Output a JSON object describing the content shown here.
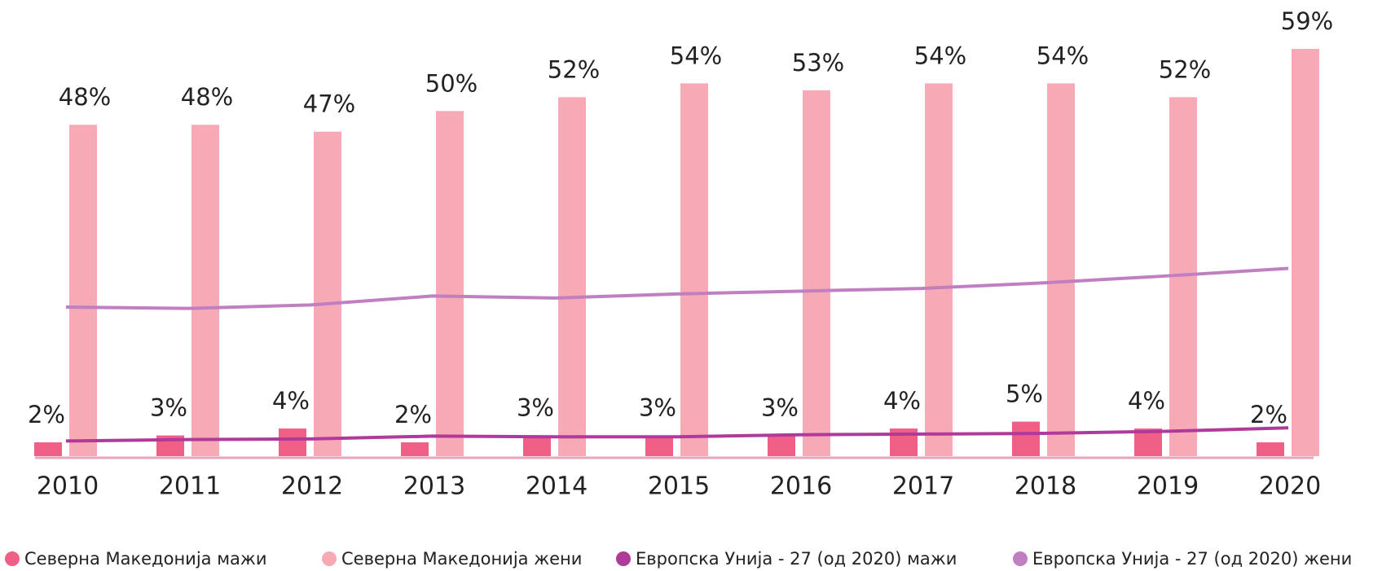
{
  "chart_data": {
    "type": "bar",
    "categories": [
      "2010",
      "2011",
      "2012",
      "2013",
      "2014",
      "2015",
      "2016",
      "2017",
      "2018",
      "2019",
      "2020"
    ],
    "series": [
      {
        "name": "Северна Македонија мажи",
        "type": "bar",
        "color": "#ef5f86",
        "values": [
          2,
          3,
          4,
          2,
          3,
          3,
          3,
          4,
          5,
          4,
          2
        ],
        "value_labels": [
          "2%",
          "3%",
          "4%",
          "2%",
          "3%",
          "3%",
          "3%",
          "4%",
          "5%",
          "4%",
          "2%"
        ]
      },
      {
        "name": "Северна Македонија жени",
        "type": "bar",
        "color": "#f7aab5",
        "values": [
          48,
          48,
          47,
          50,
          52,
          54,
          53,
          54,
          54,
          52,
          59
        ],
        "value_labels": [
          "48%",
          "48%",
          "47%",
          "50%",
          "52%",
          "54%",
          "53%",
          "54%",
          "54%",
          "52%",
          "59%"
        ]
      },
      {
        "name": "Европска Унија - 27 (од 2020) мажи",
        "type": "line",
        "color": "#b03a9a",
        "values": [
          2.2,
          2.4,
          2.5,
          2.9,
          2.8,
          2.8,
          3.1,
          3.2,
          3.3,
          3.6,
          4.1
        ]
      },
      {
        "name": "Европска Унија - 27 (од 2020) жени",
        "type": "line",
        "color": "#c07fc0",
        "values": [
          21.6,
          21.4,
          21.9,
          23.2,
          22.9,
          23.5,
          23.9,
          24.3,
          25.1,
          26.1,
          27.2
        ]
      }
    ],
    "ylim": [
      0,
      59
    ],
    "legend": "bottom"
  }
}
